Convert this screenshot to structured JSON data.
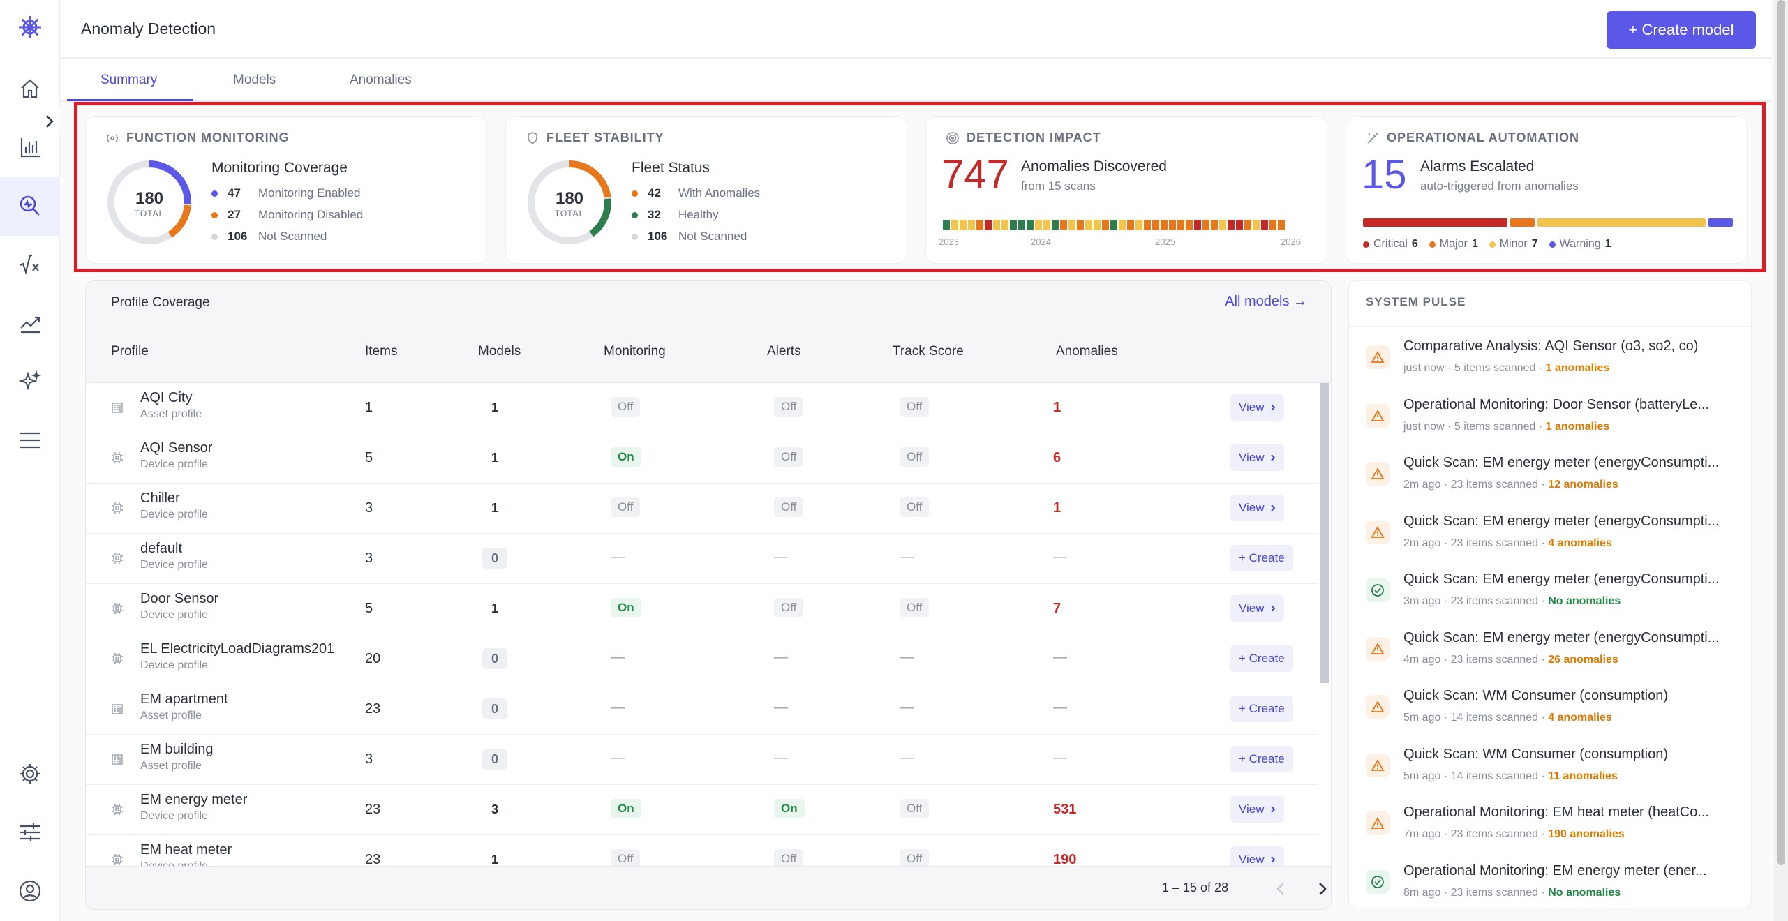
{
  "header": {
    "title": "Anomaly Detection",
    "create_button": "+ Create model"
  },
  "tabs": [
    {
      "label": "Summary"
    },
    {
      "label": "Models"
    },
    {
      "label": "Anomalies"
    }
  ],
  "function_monitoring": {
    "heading": "FUNCTION MONITORING",
    "subtitle": "Monitoring Coverage",
    "total": "180",
    "total_label": "TOTAL",
    "legend": [
      {
        "value": "47",
        "label": "Monitoring Enabled",
        "color": "#5b58e8"
      },
      {
        "value": "27",
        "label": "Monitoring Disabled",
        "color": "#e8761a"
      },
      {
        "value": "106",
        "label": "Not Scanned",
        "color": "#d4d6dc"
      }
    ]
  },
  "fleet_stability": {
    "heading": "FLEET STABILITY",
    "subtitle": "Fleet Status",
    "total": "180",
    "total_label": "TOTAL",
    "legend": [
      {
        "value": "42",
        "label": "With Anomalies",
        "color": "#e8761a"
      },
      {
        "value": "32",
        "label": "Healthy",
        "color": "#2e7d4f"
      },
      {
        "value": "106",
        "label": "Not Scanned",
        "color": "#d4d6dc"
      }
    ]
  },
  "detection_impact": {
    "heading": "DETECTION IMPACT",
    "value": "747",
    "subtitle": "Anomalies Discovered",
    "subtext": "from 15 scans",
    "years": [
      "2023",
      "2024",
      "2025",
      "2026"
    ],
    "strip_colors": [
      "#2e7d4f",
      "#f2c44b",
      "#f2c44b",
      "#f2c44b",
      "#e8761a",
      "#c62828",
      "#f2c44b",
      "#f2c44b",
      "#2e7d4f",
      "#2e7d4f",
      "#2e7d4f",
      "#f2c44b",
      "#f2c44b",
      "#2e7d4f",
      "#e8761a",
      "#f2c44b",
      "#e8761a",
      "#f2c44b",
      "#f2c44b",
      "#e8761a",
      "#2e7d4f",
      "#f2c44b",
      "#e8761a",
      "#f2c44b",
      "#e8761a",
      "#e8761a",
      "#e8761a",
      "#e8761a",
      "#e8761a",
      "#e8761a",
      "#c62828",
      "#e8761a",
      "#e8761a",
      "#f2c44b",
      "#c62828",
      "#c62828",
      "#e8761a",
      "#f2c44b",
      "#c62828",
      "#e8761a",
      "#e8761a"
    ]
  },
  "operational_automation": {
    "heading": "OPERATIONAL AUTOMATION",
    "value": "15",
    "subtitle": "Alarms Escalated",
    "subtext": "auto-triggered from anomalies",
    "legend": [
      {
        "label": "Critical",
        "value": "6",
        "color": "#c62828"
      },
      {
        "label": "Major",
        "value": "1",
        "color": "#e8761a"
      },
      {
        "label": "Minor",
        "value": "7",
        "color": "#f2c44b"
      },
      {
        "label": "Warning",
        "value": "1",
        "color": "#5b58e8"
      }
    ]
  },
  "profile_coverage": {
    "title": "Profile Coverage",
    "all_models": "All models →",
    "columns": [
      "Profile",
      "Items",
      "Models",
      "Monitoring",
      "Alerts",
      "Track Score",
      "Anomalies"
    ],
    "rows": [
      {
        "name": "AQI City",
        "kind": "Asset profile",
        "icon": "building-icon",
        "items": "1",
        "models": "1",
        "monitoring": "Off",
        "alerts": "Off",
        "track": "Off",
        "anomalies": "1",
        "action": "View"
      },
      {
        "name": "AQI Sensor",
        "kind": "Device profile",
        "icon": "chip-icon",
        "items": "5",
        "models": "1",
        "monitoring": "On",
        "alerts": "Off",
        "track": "Off",
        "anomalies": "6",
        "action": "View"
      },
      {
        "name": "Chiller",
        "kind": "Device profile",
        "icon": "chip-icon",
        "items": "3",
        "models": "1",
        "monitoring": "Off",
        "alerts": "Off",
        "track": "Off",
        "anomalies": "1",
        "action": "View"
      },
      {
        "name": "default",
        "kind": "Device profile",
        "icon": "chip-icon",
        "items": "3",
        "models": "0",
        "monitoring": "—",
        "alerts": "—",
        "track": "—",
        "anomalies": "—",
        "action": "+ Create"
      },
      {
        "name": "Door Sensor",
        "kind": "Device profile",
        "icon": "chip-icon",
        "items": "5",
        "models": "1",
        "monitoring": "On",
        "alerts": "Off",
        "track": "Off",
        "anomalies": "7",
        "action": "View"
      },
      {
        "name": "EL ElectricityLoadDiagrams201",
        "kind": "Device profile",
        "icon": "chip-icon",
        "items": "20",
        "models": "0",
        "monitoring": "—",
        "alerts": "—",
        "track": "—",
        "anomalies": "—",
        "action": "+ Create"
      },
      {
        "name": "EM apartment",
        "kind": "Asset profile",
        "icon": "building-icon",
        "items": "23",
        "models": "0",
        "monitoring": "—",
        "alerts": "—",
        "track": "—",
        "anomalies": "—",
        "action": "+ Create"
      },
      {
        "name": "EM building",
        "kind": "Asset profile",
        "icon": "building-icon",
        "items": "3",
        "models": "0",
        "monitoring": "—",
        "alerts": "—",
        "track": "—",
        "anomalies": "—",
        "action": "+ Create"
      },
      {
        "name": "EM energy meter",
        "kind": "Device profile",
        "icon": "chip-icon",
        "items": "23",
        "models": "3",
        "monitoring": "On",
        "alerts": "On",
        "track": "Off",
        "anomalies": "531",
        "action": "View"
      },
      {
        "name": "EM heat meter",
        "kind": "Device profile",
        "icon": "chip-icon",
        "items": "23",
        "models": "1",
        "monitoring": "Off",
        "alerts": "Off",
        "track": "Off",
        "anomalies": "190",
        "action": "View"
      }
    ],
    "pagination": "1 – 15 of 28"
  },
  "system_pulse": {
    "title": "SYSTEM PULSE",
    "items": [
      {
        "status": "warn",
        "title": "Comparative Analysis: AQI Sensor (o3, so2, co)",
        "time": "just now",
        "scanned": "5 items scanned",
        "result": "1 anomalies"
      },
      {
        "status": "warn",
        "title": "Operational Monitoring: Door Sensor (batteryLe...",
        "time": "just now",
        "scanned": "5 items scanned",
        "result": "1 anomalies"
      },
      {
        "status": "warn",
        "title": "Quick Scan: EM energy meter (energyConsumpti...",
        "time": "2m ago",
        "scanned": "23 items scanned",
        "result": "12 anomalies"
      },
      {
        "status": "warn",
        "title": "Quick Scan: EM energy meter (energyConsumpti...",
        "time": "2m ago",
        "scanned": "23 items scanned",
        "result": "4 anomalies"
      },
      {
        "status": "ok",
        "title": "Quick Scan: EM energy meter (energyConsumpti...",
        "time": "3m ago",
        "scanned": "23 items scanned",
        "result": "No anomalies"
      },
      {
        "status": "warn",
        "title": "Quick Scan: EM energy meter (energyConsumpti...",
        "time": "4m ago",
        "scanned": "23 items scanned",
        "result": "26 anomalies"
      },
      {
        "status": "warn",
        "title": "Quick Scan: WM Consumer (consumption)",
        "time": "5m ago",
        "scanned": "14 items scanned",
        "result": "4 anomalies"
      },
      {
        "status": "warn",
        "title": "Quick Scan: WM Consumer (consumption)",
        "time": "5m ago",
        "scanned": "14 items scanned",
        "result": "11 anomalies"
      },
      {
        "status": "warn",
        "title": "Operational Monitoring: EM heat meter (heatCo...",
        "time": "7m ago",
        "scanned": "23 items scanned",
        "result": "190 anomalies"
      },
      {
        "status": "ok",
        "title": "Operational Monitoring: EM energy meter (ener...",
        "time": "8m ago",
        "scanned": "23 items scanned",
        "result": "No anomalies"
      }
    ]
  },
  "colors": {
    "accent": "#5b58e8",
    "critical": "#c62828",
    "major": "#e8761a",
    "minor": "#f2c44b",
    "healthy": "#2e7d4f"
  }
}
